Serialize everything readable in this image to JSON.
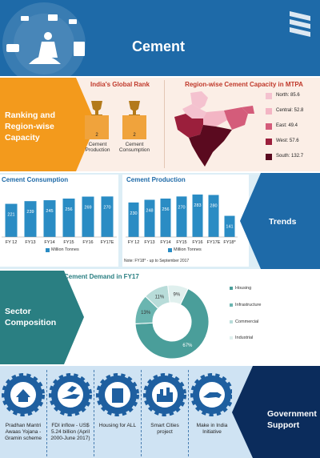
{
  "header": {
    "title": "Cement",
    "icons": [
      "construction-tools-icon",
      "worker-icon",
      "stacked-layers-icon"
    ]
  },
  "ranking": {
    "section_label": "Ranking and Region-wise Capacity",
    "rank_title": "India's Global Rank",
    "ranks": [
      {
        "label": "Cement Production",
        "value": "2"
      },
      {
        "label": "Cement Consumption",
        "value": "2"
      }
    ],
    "map_title": "Region-wise Cement Capacity in MTPA",
    "regions": [
      {
        "label": "North: 85.6",
        "color": "#f4c2cf"
      },
      {
        "label": "Central: 52.8",
        "color": "#f3b5c4"
      },
      {
        "label": "East: 49.4",
        "color": "#d45c7a"
      },
      {
        "label": "West: 57.6",
        "color": "#9b1f3c"
      },
      {
        "label": "South: 132.7",
        "color": "#5a0a1f"
      }
    ]
  },
  "trends": {
    "section_label": "Trends",
    "legend": "Million Tonnes",
    "footnote": "Note: FY18* - up to September 2017"
  },
  "sector": {
    "section_label": "Sector Composition",
    "legend": [
      "Housing",
      "Infrastructure",
      "Commercial",
      "Industrial"
    ]
  },
  "government": {
    "section_label": "Government Support",
    "items": [
      "Pradhan Mantri Awaas Yojana - Gramin scheme",
      "FDI inflow - US$ 5.24 billion (April 2000-June 2017)",
      "Housing for ALL",
      "Smart Cities project",
      "Make in India Initiative"
    ]
  },
  "chart_data": [
    {
      "type": "bar",
      "title": "Cement Consumption",
      "categories": [
        "FY 12",
        "FY13",
        "FY14",
        "FY15",
        "FY16",
        "FY17E"
      ],
      "series": [
        {
          "name": "Million Tonnes",
          "values": [
            221,
            239,
            245,
            256,
            269,
            270
          ]
        }
      ],
      "ylim": [
        0,
        320
      ],
      "color": "#2a8cc4"
    },
    {
      "type": "bar",
      "title": "Cement Production",
      "categories": [
        "FY 12",
        "FY13",
        "FY14",
        "FY15",
        "FY16",
        "FY17E",
        "FY18*"
      ],
      "series": [
        {
          "name": "Million Tonnes",
          "values": [
            230,
            248,
            256,
            270,
            283,
            280,
            141
          ]
        }
      ],
      "ylim": [
        0,
        320
      ],
      "color": "#2a8cc4"
    },
    {
      "type": "pie",
      "title": "Cement Demand in FY17",
      "categories": [
        "Housing",
        "Infrastructure",
        "Commercial",
        "Industrial"
      ],
      "values": [
        67,
        13,
        11,
        9
      ],
      "value_labels": [
        "67%",
        "13%",
        "11%",
        "9%"
      ],
      "colors": [
        "#4a9e9a",
        "#6ab5b0",
        "#b8dcd9",
        "#e0f0ee"
      ]
    }
  ]
}
